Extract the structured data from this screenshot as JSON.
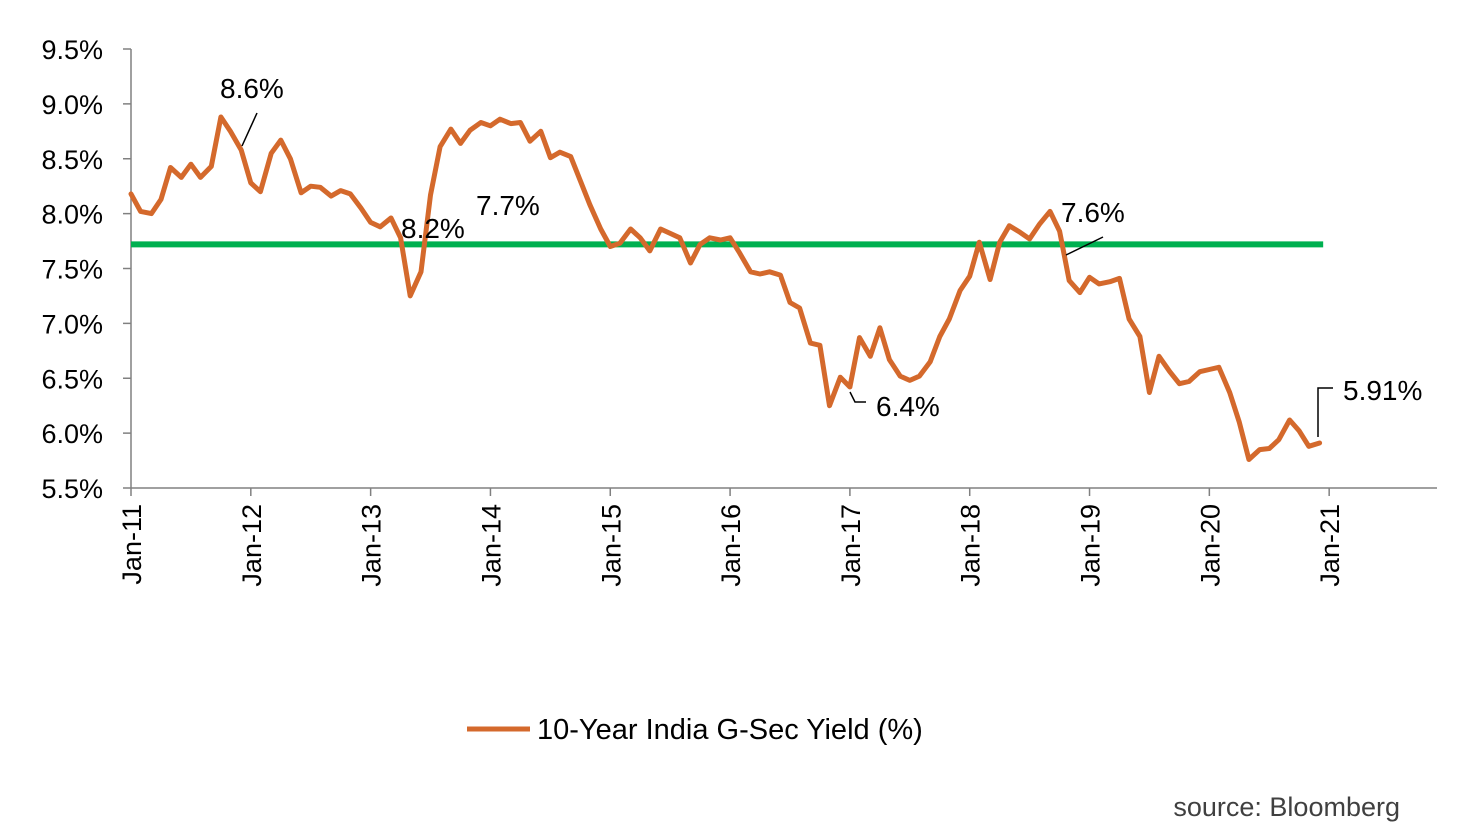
{
  "chart_data": {
    "type": "line",
    "title": "",
    "xlabel": "",
    "ylabel": "",
    "y_tick_labels": [
      "5.5%",
      "6.0%",
      "6.5%",
      "7.0%",
      "7.5%",
      "8.0%",
      "8.5%",
      "9.0%",
      "9.5%"
    ],
    "y_ticks": [
      5.5,
      6.0,
      6.5,
      7.0,
      7.5,
      8.0,
      8.5,
      9.0,
      9.5
    ],
    "ylim": [
      5.5,
      9.5
    ],
    "x_tick_labels": [
      "Jan-11",
      "Jan-12",
      "Jan-13",
      "Jan-14",
      "Jan-15",
      "Jan-16",
      "Jan-17",
      "Jan-18",
      "Jan-19",
      "Jan-20",
      "Jan-21"
    ],
    "x_ticks": [
      2011,
      2012,
      2013,
      2014,
      2015,
      2016,
      2017,
      2018,
      2019,
      2020,
      2021
    ],
    "xlim": [
      2011,
      2021.9
    ],
    "grid": false,
    "legend_position": "bottom-center",
    "reference_line": {
      "y": 7.72,
      "x_start": 2011,
      "x_end": 2020.95,
      "color": "#00b050"
    },
    "series": [
      {
        "name": "10-Year India G-Sec Yield (%)",
        "color": "#d4692c",
        "x": [
          2011.0,
          2011.08,
          2011.17,
          2011.25,
          2011.33,
          2011.42,
          2011.5,
          2011.58,
          2011.67,
          2011.75,
          2011.83,
          2011.92,
          2012.0,
          2012.08,
          2012.17,
          2012.25,
          2012.33,
          2012.42,
          2012.5,
          2012.58,
          2012.67,
          2012.75,
          2012.83,
          2012.92,
          2013.0,
          2013.08,
          2013.17,
          2013.25,
          2013.33,
          2013.42,
          2013.5,
          2013.58,
          2013.67,
          2013.75,
          2013.83,
          2013.92,
          2014.0,
          2014.08,
          2014.17,
          2014.25,
          2014.33,
          2014.42,
          2014.5,
          2014.58,
          2014.67,
          2014.75,
          2014.83,
          2014.92,
          2015.0,
          2015.08,
          2015.17,
          2015.25,
          2015.33,
          2015.42,
          2015.5,
          2015.58,
          2015.67,
          2015.75,
          2015.83,
          2015.92,
          2016.0,
          2016.08,
          2016.17,
          2016.25,
          2016.33,
          2016.42,
          2016.5,
          2016.58,
          2016.67,
          2016.75,
          2016.83,
          2016.92,
          2017.0,
          2017.08,
          2017.17,
          2017.25,
          2017.33,
          2017.42,
          2017.5,
          2017.58,
          2017.67,
          2017.75,
          2017.83,
          2017.92,
          2018.0,
          2018.08,
          2018.17,
          2018.25,
          2018.33,
          2018.42,
          2018.5,
          2018.58,
          2018.67,
          2018.75,
          2018.83,
          2018.92,
          2019.0,
          2019.08,
          2019.17,
          2019.25,
          2019.33,
          2019.42,
          2019.5,
          2019.58,
          2019.67,
          2019.75,
          2019.83,
          2019.92,
          2020.0,
          2020.08,
          2020.17,
          2020.25,
          2020.33,
          2020.42,
          2020.5,
          2020.58,
          2020.67,
          2020.75,
          2020.83,
          2020.92
        ],
        "y": [
          8.18,
          8.02,
          8.0,
          8.13,
          8.42,
          8.33,
          8.45,
          8.33,
          8.43,
          8.88,
          8.75,
          8.58,
          8.28,
          8.2,
          8.55,
          8.67,
          8.5,
          8.19,
          8.25,
          8.24,
          8.16,
          8.21,
          8.18,
          8.05,
          7.92,
          7.88,
          7.96,
          7.78,
          7.25,
          7.47,
          8.17,
          8.61,
          8.77,
          8.64,
          8.76,
          8.83,
          8.8,
          8.86,
          8.82,
          8.83,
          8.66,
          8.75,
          8.51,
          8.56,
          8.52,
          8.3,
          8.08,
          7.86,
          7.7,
          7.73,
          7.86,
          7.78,
          7.66,
          7.86,
          7.82,
          7.78,
          7.55,
          7.72,
          7.78,
          7.76,
          7.78,
          7.64,
          7.47,
          7.45,
          7.47,
          7.44,
          7.19,
          7.14,
          6.82,
          6.8,
          6.25,
          6.51,
          6.42,
          6.87,
          6.7,
          6.96,
          6.67,
          6.52,
          6.48,
          6.52,
          6.65,
          6.88,
          7.04,
          7.3,
          7.43,
          7.74,
          7.4,
          7.74,
          7.89,
          7.83,
          7.77,
          7.9,
          8.02,
          7.84,
          7.39,
          7.28,
          7.42,
          7.36,
          7.38,
          7.41,
          7.04,
          6.88,
          6.37,
          6.7,
          6.56,
          6.45,
          6.47,
          6.56,
          6.58,
          6.6,
          6.37,
          6.1,
          5.76,
          5.85,
          5.86,
          5.94,
          6.12,
          6.02,
          5.88,
          5.91
        ]
      }
    ],
    "annotations": [
      {
        "text": "8.6%",
        "x": 2011.92,
        "y": 8.58
      },
      {
        "text": "8.2%",
        "x": 2013.25,
        "y": 7.78
      },
      {
        "text": "7.7%",
        "x": 2014.25,
        "y": 8.0
      },
      {
        "text": "6.4%",
        "x": 2017.0,
        "y": 6.42
      },
      {
        "text": "7.6%",
        "x": 2018.83,
        "y": 7.65
      },
      {
        "text": "5.91%",
        "x": 2020.92,
        "y": 5.91
      }
    ]
  },
  "legend": {
    "label": "10-Year India G-Sec Yield (%)"
  },
  "source": "source: Bloomberg"
}
